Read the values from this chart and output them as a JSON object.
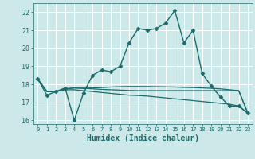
{
  "xlabel": "Humidex (Indice chaleur)",
  "background_color": "#cce8e8",
  "grid_color": "#ffffff",
  "line_color": "#1a6b6b",
  "xlim": [
    -0.5,
    23.5
  ],
  "ylim": [
    15.8,
    22.5
  ],
  "yticks": [
    16,
    17,
    18,
    19,
    20,
    21,
    22
  ],
  "xticks": [
    0,
    1,
    2,
    3,
    4,
    5,
    6,
    7,
    8,
    9,
    10,
    11,
    12,
    13,
    14,
    15,
    16,
    17,
    18,
    19,
    20,
    21,
    22,
    23
  ],
  "curves": [
    {
      "x": [
        0,
        1,
        2,
        3,
        4,
        5,
        6,
        7,
        8,
        9,
        10,
        11,
        12,
        13,
        14,
        15,
        16,
        17,
        18,
        19,
        20,
        21,
        22,
        23
      ],
      "y": [
        18.3,
        17.4,
        17.6,
        17.8,
        16.0,
        17.5,
        18.5,
        18.8,
        18.7,
        19.0,
        20.3,
        21.1,
        21.0,
        21.1,
        21.4,
        22.1,
        20.3,
        21.0,
        18.6,
        17.9,
        17.3,
        16.8,
        16.8,
        16.4
      ],
      "marker": "D",
      "markersize": 2.5,
      "linewidth": 1.0
    },
    {
      "x": [
        0,
        1,
        2,
        3,
        4,
        5,
        6,
        7,
        8,
        9,
        10,
        11,
        12,
        13,
        14,
        15,
        16,
        17,
        18,
        19,
        20,
        21,
        22,
        23
      ],
      "y": [
        18.3,
        17.6,
        17.6,
        17.7,
        17.7,
        17.65,
        17.6,
        17.55,
        17.5,
        17.45,
        17.4,
        17.38,
        17.35,
        17.3,
        17.25,
        17.2,
        17.15,
        17.1,
        17.05,
        17.0,
        16.95,
        16.9,
        16.8,
        16.4
      ],
      "marker": null,
      "linewidth": 0.9
    },
    {
      "x": [
        0,
        1,
        2,
        3,
        4,
        5,
        6,
        7,
        8,
        9,
        10,
        11,
        12,
        13,
        14,
        15,
        16,
        17,
        18,
        19,
        20,
        21,
        22,
        23
      ],
      "y": [
        18.3,
        17.6,
        17.6,
        17.75,
        17.8,
        17.78,
        17.8,
        17.82,
        17.85,
        17.87,
        17.88,
        17.88,
        17.88,
        17.87,
        17.86,
        17.85,
        17.83,
        17.82,
        17.8,
        17.78,
        17.75,
        17.7,
        17.65,
        16.4
      ],
      "marker": null,
      "linewidth": 0.9
    },
    {
      "x": [
        0,
        1,
        2,
        3,
        4,
        5,
        6,
        7,
        8,
        9,
        10,
        11,
        12,
        13,
        14,
        15,
        16,
        17,
        18,
        19,
        20,
        21,
        22,
        23
      ],
      "y": [
        18.3,
        17.6,
        17.6,
        17.75,
        17.8,
        17.78,
        17.75,
        17.72,
        17.7,
        17.68,
        17.66,
        17.65,
        17.65,
        17.65,
        17.65,
        17.65,
        17.65,
        17.65,
        17.65,
        17.65,
        17.65,
        17.65,
        17.65,
        16.4
      ],
      "marker": null,
      "linewidth": 0.9
    }
  ]
}
